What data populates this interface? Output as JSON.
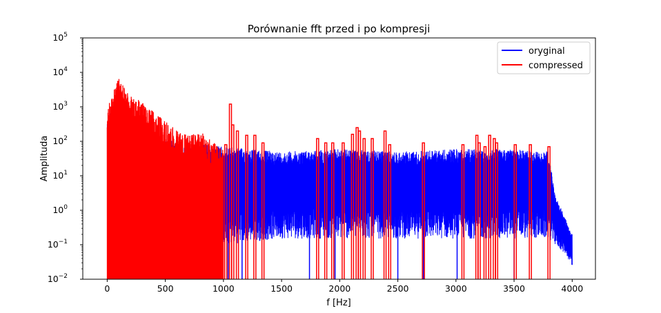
{
  "chart_data": {
    "type": "line",
    "title": "Porównanie fft przed i po kompresji",
    "xlabel": "f [Hz]",
    "ylabel": "Amplituda",
    "xlim": [
      -210,
      4200
    ],
    "ylim": [
      0.01,
      100000
    ],
    "yscale": "log",
    "x_ticks": [
      0,
      500,
      1000,
      1500,
      2000,
      2500,
      3000,
      3500,
      4000
    ],
    "y_ticks": [
      {
        "base": "10",
        "exp": "−2",
        "value": 0.01
      },
      {
        "base": "10",
        "exp": "−1",
        "value": 0.1
      },
      {
        "base": "10",
        "exp": "0",
        "value": 1
      },
      {
        "base": "10",
        "exp": "1",
        "value": 10
      },
      {
        "base": "10",
        "exp": "2",
        "value": 100
      },
      {
        "base": "10",
        "exp": "3",
        "value": 1000
      },
      {
        "base": "10",
        "exp": "4",
        "value": 10000
      },
      {
        "base": "10",
        "exp": "5",
        "value": 100000
      }
    ],
    "grid": false,
    "legend_position": "top-right",
    "series": [
      {
        "name": "oryginal",
        "color": "#0000ff",
        "x_range": [
          0,
          4000
        ],
        "envelope_x": [
          0,
          100,
          300,
          600,
          1000,
          1500,
          2000,
          2500,
          3000,
          3500,
          3800,
          3850,
          3950,
          4000
        ],
        "envelope_upper": [
          800,
          600,
          200,
          100,
          70,
          50,
          60,
          50,
          60,
          60,
          50,
          3,
          0.5,
          0.2
        ],
        "envelope_lower": [
          0.1,
          0.1,
          0.1,
          0.1,
          0.1,
          0.15,
          0.15,
          0.15,
          0.15,
          0.15,
          0.15,
          0.1,
          0.05,
          0.02
        ],
        "dips_to_floor": [
          1040,
          1160,
          1740,
          1960,
          2500,
          2720,
          3010,
          3500
        ]
      },
      {
        "name": "compressed",
        "color": "#ff0000",
        "dense_region": {
          "x_range": [
            0,
            1000
          ],
          "envelope_x": [
            0,
            50,
            100,
            200,
            300,
            400,
            500,
            600,
            700,
            800,
            900,
            1000
          ],
          "envelope_upper": [
            900,
            3000,
            7000,
            2000,
            1500,
            700,
            400,
            200,
            150,
            200,
            100,
            60
          ]
        },
        "spikes": [
          {
            "x": 1020,
            "y": 80
          },
          {
            "x": 1060,
            "y": 1200
          },
          {
            "x": 1080,
            "y": 300
          },
          {
            "x": 1120,
            "y": 200
          },
          {
            "x": 1200,
            "y": 150
          },
          {
            "x": 1270,
            "y": 150
          },
          {
            "x": 1340,
            "y": 90
          },
          {
            "x": 1810,
            "y": 120
          },
          {
            "x": 1880,
            "y": 90
          },
          {
            "x": 1940,
            "y": 90
          },
          {
            "x": 2030,
            "y": 90
          },
          {
            "x": 2110,
            "y": 160
          },
          {
            "x": 2150,
            "y": 250
          },
          {
            "x": 2170,
            "y": 200
          },
          {
            "x": 2210,
            "y": 120
          },
          {
            "x": 2280,
            "y": 120
          },
          {
            "x": 2390,
            "y": 200
          },
          {
            "x": 2430,
            "y": 80
          },
          {
            "x": 2720,
            "y": 90
          },
          {
            "x": 3060,
            "y": 80
          },
          {
            "x": 3180,
            "y": 150
          },
          {
            "x": 3200,
            "y": 90
          },
          {
            "x": 3250,
            "y": 70
          },
          {
            "x": 3290,
            "y": 150
          },
          {
            "x": 3330,
            "y": 120
          },
          {
            "x": 3350,
            "y": 90
          },
          {
            "x": 3510,
            "y": 80
          },
          {
            "x": 3640,
            "y": 80
          },
          {
            "x": 3800,
            "y": 70
          }
        ]
      }
    ]
  }
}
